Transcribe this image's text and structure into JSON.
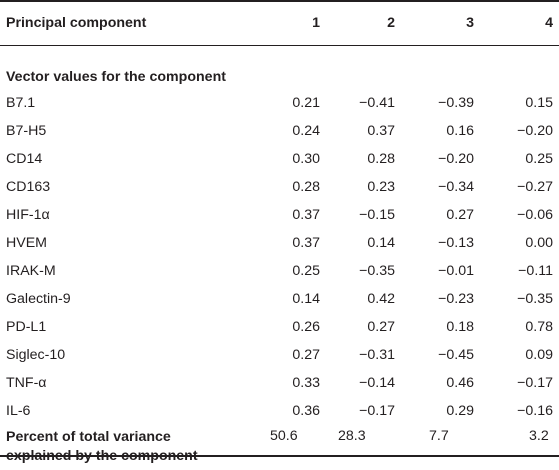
{
  "table": {
    "header": {
      "label": "Principal component",
      "columns": [
        "1",
        "2",
        "3",
        "4"
      ]
    },
    "section_label": "Vector values for the component",
    "rows": [
      {
        "label": "B7.1",
        "values": [
          "0.21",
          "−0.41",
          "−0.39",
          "0.15"
        ]
      },
      {
        "label": "B7-H5",
        "values": [
          "0.24",
          "0.37",
          "0.16",
          "−0.20"
        ]
      },
      {
        "label": "CD14",
        "values": [
          "0.30",
          "0.28",
          "−0.20",
          "0.25"
        ]
      },
      {
        "label": "CD163",
        "values": [
          "0.28",
          "0.23",
          "−0.34",
          "−0.27"
        ]
      },
      {
        "label": "HIF-1α",
        "values": [
          "0.37",
          "−0.15",
          "0.27",
          "−0.06"
        ]
      },
      {
        "label": "HVEM",
        "values": [
          "0.37",
          "0.14",
          "−0.13",
          "0.00"
        ]
      },
      {
        "label": "IRAK-M",
        "values": [
          "0.25",
          "−0.35",
          "−0.01",
          "−0.11"
        ]
      },
      {
        "label": "Galectin-9",
        "values": [
          "0.14",
          "0.42",
          "−0.23",
          "−0.35"
        ]
      },
      {
        "label": "PD-L1",
        "values": [
          "0.26",
          "0.27",
          "0.18",
          "0.78"
        ]
      },
      {
        "label": "Siglec-10",
        "values": [
          "0.27",
          "−0.31",
          "−0.45",
          "0.09"
        ]
      },
      {
        "label": "TNF-α",
        "values": [
          "0.33",
          "−0.14",
          "0.46",
          "−0.17"
        ]
      },
      {
        "label": "IL-6",
        "values": [
          "0.36",
          "−0.17",
          "0.29",
          "−0.16"
        ]
      }
    ],
    "footer": {
      "label_line1": "Percent of total variance",
      "label_line2": "explained by the component",
      "values": [
        "50.6",
        "28.3",
        "7.7",
        "3.2"
      ]
    }
  }
}
